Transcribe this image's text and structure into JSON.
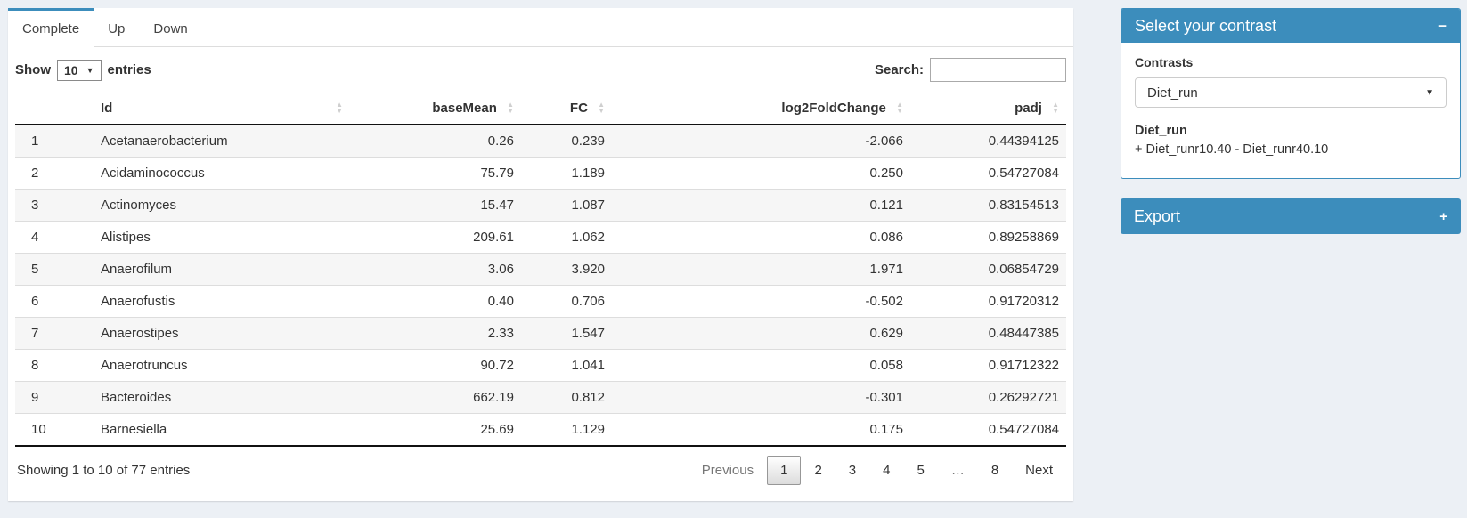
{
  "page": {
    "background": "#ecf0f5",
    "accent": "#3c8dbc"
  },
  "tabs": [
    {
      "label": "Complete",
      "active": true
    },
    {
      "label": "Up",
      "active": false
    },
    {
      "label": "Down",
      "active": false
    }
  ],
  "table_controls": {
    "show_label": "Show",
    "page_length": "10",
    "entries_label": "entries",
    "search_label": "Search:",
    "search_value": ""
  },
  "table": {
    "columns": [
      "Id",
      "baseMean",
      "FC",
      "log2FoldChange",
      "padj"
    ],
    "rows": [
      [
        "1",
        "Acetanaerobacterium",
        "0.26",
        "0.239",
        "-2.066",
        "0.44394125"
      ],
      [
        "2",
        "Acidaminococcus",
        "75.79",
        "1.189",
        "0.250",
        "0.54727084"
      ],
      [
        "3",
        "Actinomyces",
        "15.47",
        "1.087",
        "0.121",
        "0.83154513"
      ],
      [
        "4",
        "Alistipes",
        "209.61",
        "1.062",
        "0.086",
        "0.89258869"
      ],
      [
        "5",
        "Anaerofilum",
        "3.06",
        "3.920",
        "1.971",
        "0.06854729"
      ],
      [
        "6",
        "Anaerofustis",
        "0.40",
        "0.706",
        "-0.502",
        "0.91720312"
      ],
      [
        "7",
        "Anaerostipes",
        "2.33",
        "1.547",
        "0.629",
        "0.48447385"
      ],
      [
        "8",
        "Anaerotruncus",
        "90.72",
        "1.041",
        "0.058",
        "0.91712322"
      ],
      [
        "9",
        "Bacteroides",
        "662.19",
        "0.812",
        "-0.301",
        "0.26292721"
      ],
      [
        "10",
        "Barnesiella",
        "25.69",
        "1.129",
        "0.175",
        "0.54727084"
      ]
    ],
    "info": "Showing 1 to 10 of 77 entries",
    "pagination": [
      {
        "label": "Previous",
        "state": "disabled"
      },
      {
        "label": "1",
        "state": "active"
      },
      {
        "label": "2",
        "state": ""
      },
      {
        "label": "3",
        "state": ""
      },
      {
        "label": "4",
        "state": ""
      },
      {
        "label": "5",
        "state": ""
      },
      {
        "label": "…",
        "state": "ellipsis"
      },
      {
        "label": "8",
        "state": ""
      },
      {
        "label": "Next",
        "state": ""
      }
    ]
  },
  "contrast_panel": {
    "title": "Select your contrast",
    "collapse_icon": "−",
    "contrasts_label": "Contrasts",
    "selected_contrast": "Diet_run",
    "contrast_name": "Diet_run",
    "contrast_formula": "+ Diet_runr10.40 - Diet_runr40.10"
  },
  "export_panel": {
    "title": "Export",
    "expand_icon": "+"
  }
}
